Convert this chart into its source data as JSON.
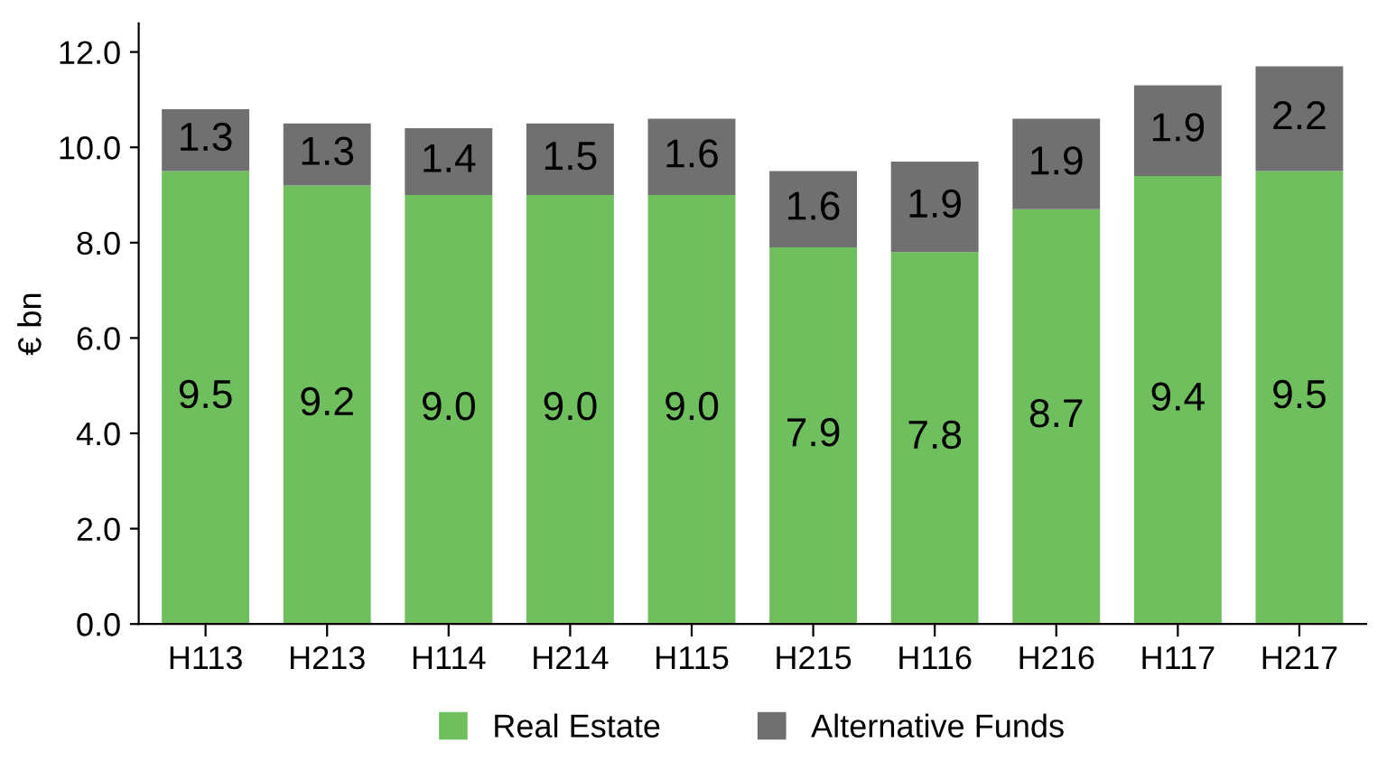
{
  "chart_data": {
    "type": "bar",
    "stacked": true,
    "ylabel": "€ bn",
    "categories": [
      "H113",
      "H213",
      "H114",
      "H214",
      "H115",
      "H215",
      "H116",
      "H216",
      "H117",
      "H217"
    ],
    "series": [
      {
        "name": "Real Estate",
        "color": "#70bf5e",
        "values": [
          9.5,
          9.2,
          9.0,
          9.0,
          9.0,
          7.9,
          7.8,
          8.7,
          9.4,
          9.5
        ],
        "value_labels": [
          "9.5",
          "9.2",
          "9.0",
          "9.0",
          "9.0",
          "7.9",
          "7.8",
          "8.7",
          "9.4",
          "9.5"
        ]
      },
      {
        "name": "Alternative Funds",
        "color": "#707070",
        "values": [
          1.3,
          1.3,
          1.4,
          1.5,
          1.6,
          1.6,
          1.9,
          1.9,
          1.9,
          2.2
        ],
        "value_labels": [
          "1.3",
          "1.3",
          "1.4",
          "1.5",
          "1.6",
          "1.6",
          "1.9",
          "1.9",
          "1.9",
          "2.2"
        ]
      }
    ],
    "ylim": [
      0,
      12.6
    ],
    "yticks": [
      {
        "value": 0,
        "label": "0.0"
      },
      {
        "value": 2,
        "label": "2.0"
      },
      {
        "value": 4,
        "label": "4.0"
      },
      {
        "value": 6,
        "label": "6.0"
      },
      {
        "value": 8,
        "label": "8.0"
      },
      {
        "value": 10,
        "label": "10.0"
      },
      {
        "value": 12,
        "label": "12.0"
      }
    ],
    "grid": false,
    "legend": "bottom"
  }
}
